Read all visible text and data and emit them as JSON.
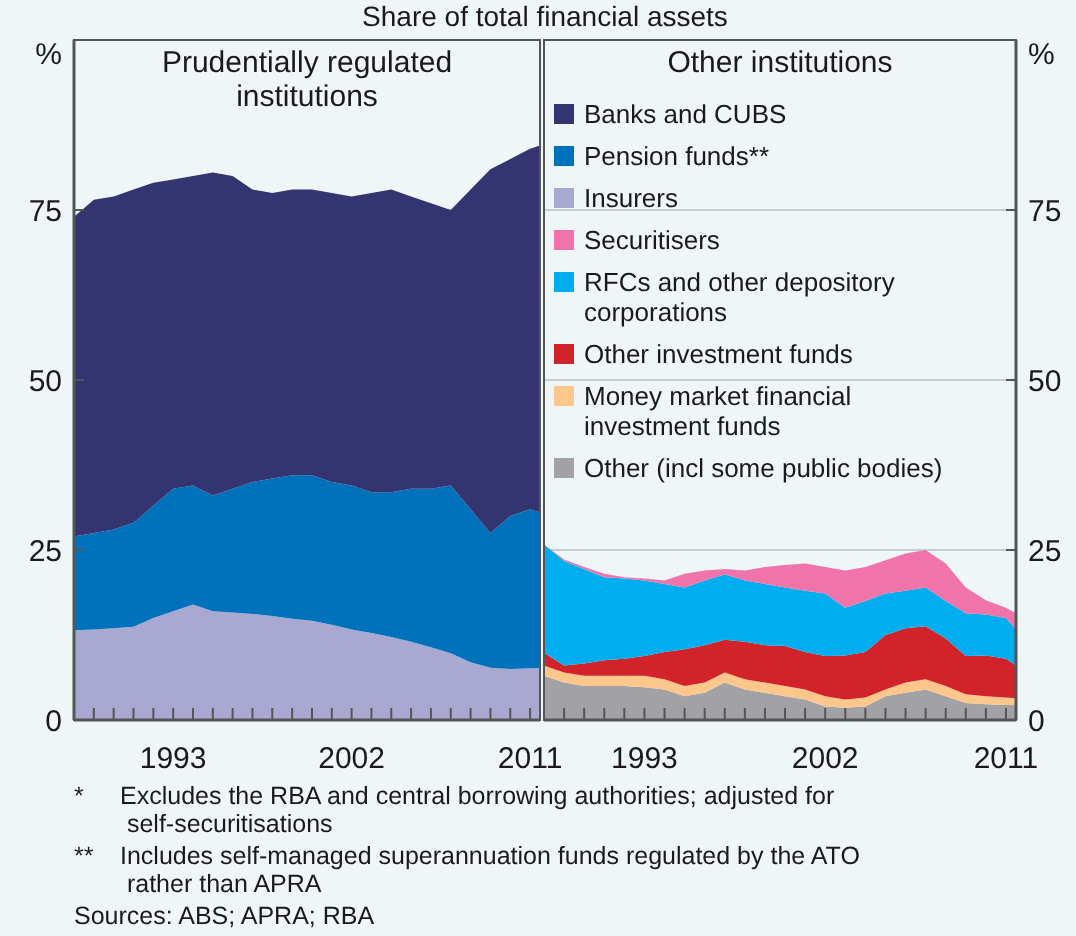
{
  "chart_data": [
    {
      "type": "area",
      "stacked": true,
      "title": "Prudentially regulated institutions",
      "subtitle": "Share of total financial assets",
      "ylabel": "%",
      "x": [
        1988,
        1989,
        1990,
        1991,
        1992,
        1993,
        1994,
        1995,
        1996,
        1997,
        1998,
        1999,
        2000,
        2001,
        2002,
        2003,
        2004,
        2005,
        2006,
        2007,
        2008,
        2009,
        2010,
        2011,
        2011.5
      ],
      "xlim": [
        1988,
        2011.5
      ],
      "xticks": [
        {
          "value": 1989,
          "label": null
        },
        {
          "value": 1990,
          "label": null
        },
        {
          "value": 1991,
          "label": null
        },
        {
          "value": 1992,
          "label": null
        },
        1993,
        {
          "value": 1994,
          "label": null
        },
        {
          "value": 1995,
          "label": null
        },
        {
          "value": 1996,
          "label": null
        },
        {
          "value": 1997,
          "label": null
        },
        {
          "value": 1998,
          "label": null
        },
        {
          "value": 1999,
          "label": null
        },
        {
          "value": 2000,
          "label": null
        },
        {
          "value": 2001,
          "label": null
        },
        2002,
        {
          "value": 2003,
          "label": null
        },
        {
          "value": 2004,
          "label": null
        },
        {
          "value": 2005,
          "label": null
        },
        {
          "value": 2006,
          "label": null
        },
        {
          "value": 2007,
          "label": null
        },
        {
          "value": 2008,
          "label": null
        },
        {
          "value": 2009,
          "label": null
        },
        {
          "value": 2010,
          "label": null
        },
        2011
      ],
      "ylim": [
        0,
        100
      ],
      "yticks": [
        0,
        25,
        50,
        75
      ],
      "grid": "y",
      "legend": "right",
      "series": [
        {
          "name": "Insurers",
          "color": "#a9a8d1",
          "values": [
            13.2,
            13.3,
            13.5,
            13.7,
            15,
            16,
            17,
            16,
            15.8,
            15.6,
            15.3,
            14.9,
            14.6,
            14,
            13.3,
            12.8,
            12.2,
            11.5,
            10.7,
            9.8,
            8.5,
            7.7,
            7.5,
            7.6,
            7.6
          ]
        },
        {
          "name": "Pension funds**",
          "color": "#0071bb",
          "values": [
            13.8,
            14.2,
            14.5,
            15.3,
            16.5,
            18,
            17.5,
            17,
            18.2,
            19.4,
            20.2,
            21.1,
            21.4,
            21,
            21.2,
            20.7,
            21.3,
            22.5,
            23.3,
            24.7,
            22.5,
            19.8,
            22.5,
            23.4,
            22.9
          ]
        },
        {
          "name": "Banks and CUBS",
          "color": "#333470",
          "values": [
            47,
            49,
            49,
            49,
            47.5,
            45.5,
            45.5,
            47.5,
            46,
            43,
            42,
            42,
            42,
            42.5,
            42.5,
            44,
            44.5,
            43,
            42,
            40.5,
            47,
            53.5,
            52.5,
            53,
            54
          ]
        }
      ],
      "annotations": [
        "* Excludes the RBA and central borrowing authorities; adjusted for self-securitisations",
        "** Includes self-managed superannuation funds regulated by the ATO rather than APRA",
        "Sources: ABS; APRA; RBA"
      ]
    },
    {
      "type": "area",
      "stacked": true,
      "title": "Other institutions",
      "ylabel": "%",
      "x": [
        1988,
        1989,
        1990,
        1991,
        1992,
        1993,
        1994,
        1995,
        1996,
        1997,
        1998,
        1999,
        2000,
        2001,
        2002,
        2003,
        2004,
        2005,
        2006,
        2007,
        2008,
        2009,
        2010,
        2011,
        2011.5
      ],
      "xlim": [
        1988,
        2011.5
      ],
      "xticks": [
        {
          "value": 1989,
          "label": null
        },
        {
          "value": 1990,
          "label": null
        },
        {
          "value": 1991,
          "label": null
        },
        {
          "value": 1992,
          "label": null
        },
        1993,
        {
          "value": 1994,
          "label": null
        },
        {
          "value": 1995,
          "label": null
        },
        {
          "value": 1996,
          "label": null
        },
        {
          "value": 1997,
          "label": null
        },
        {
          "value": 1998,
          "label": null
        },
        {
          "value": 1999,
          "label": null
        },
        {
          "value": 2000,
          "label": null
        },
        {
          "value": 2001,
          "label": null
        },
        2002,
        {
          "value": 2003,
          "label": null
        },
        {
          "value": 2004,
          "label": null
        },
        {
          "value": 2005,
          "label": null
        },
        {
          "value": 2006,
          "label": null
        },
        {
          "value": 2007,
          "label": null
        },
        {
          "value": 2008,
          "label": null
        },
        {
          "value": 2009,
          "label": null
        },
        {
          "value": 2010,
          "label": null
        },
        2011
      ],
      "ylim": [
        0,
        100
      ],
      "yticks": [
        0,
        25,
        50,
        75
      ],
      "grid": "y",
      "legend": "top left",
      "series": [
        {
          "name": "Other (incl some public bodies)",
          "color": "#a2a2a6",
          "values": [
            6.5,
            5.5,
            5,
            5,
            5,
            4.8,
            4.5,
            3.5,
            4,
            5.5,
            4.5,
            4,
            3.5,
            3,
            2,
            1.8,
            2,
            3.5,
            4,
            4.5,
            3.5,
            2.5,
            2.3,
            2.2,
            2.2
          ]
        },
        {
          "name": "Money market financial investment funds",
          "color": "#fdc68b",
          "values": [
            1.5,
            1.5,
            1.5,
            1.5,
            1.5,
            1.7,
            1.5,
            1.5,
            1.5,
            1.5,
            1.5,
            1.5,
            1.5,
            1.5,
            1.5,
            1.2,
            1.3,
            1,
            1.5,
            1.5,
            1.5,
            1.3,
            1.2,
            1.1,
            1
          ]
        },
        {
          "name": "Other investment funds",
          "color": "#d2232a",
          "values": [
            1.9,
            1,
            1.8,
            2.3,
            2.5,
            2.9,
            4,
            5.4,
            5.5,
            4.8,
            5.5,
            5.5,
            5.9,
            5.5,
            5.9,
            6.5,
            6.7,
            8,
            8,
            7.8,
            7,
            5.6,
            6,
            5.7,
            4.8
          ]
        },
        {
          "name": "RFCs and other depository corporations",
          "color": "#00aeef",
          "values": [
            15.9,
            15.4,
            13.9,
            12.2,
            11.8,
            11.1,
            10,
            9.1,
            9.5,
            9.6,
            9,
            9,
            8.6,
            9,
            9.2,
            7,
            7.5,
            6.1,
            5.5,
            5.7,
            5.5,
            6.3,
            6,
            6,
            5.3
          ]
        },
        {
          "name": "Securitisers",
          "color": "#f074aa",
          "values": [
            0,
            0.2,
            0.3,
            0.5,
            0.2,
            0.3,
            0.5,
            2,
            1.5,
            0.8,
            1.5,
            2.5,
            3.3,
            4,
            3.9,
            5.5,
            5,
            4.9,
            5.5,
            5.5,
            5.5,
            3.8,
            2.1,
            1.5,
            2.4
          ]
        }
      ]
    }
  ]
}
